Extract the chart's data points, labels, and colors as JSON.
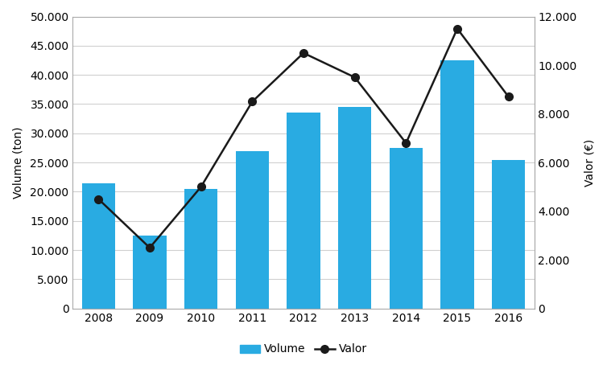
{
  "years": [
    2008,
    2009,
    2010,
    2011,
    2012,
    2013,
    2014,
    2015,
    2016
  ],
  "volume": [
    21500,
    12500,
    20500,
    27000,
    33500,
    34500,
    27500,
    42500,
    25500
  ],
  "valor": [
    4500,
    2500,
    5000,
    8500,
    10500,
    9500,
    6800,
    11500,
    8700
  ],
  "bar_color": "#29abe2",
  "line_color": "#1a1a1a",
  "marker_color": "#1a1a1a",
  "ylabel_left": "Volume (ton)",
  "ylabel_right": "Valor (€)",
  "ylim_left": [
    0,
    50000
  ],
  "ylim_right": [
    0,
    12000
  ],
  "yticks_left": [
    0,
    5000,
    10000,
    15000,
    20000,
    25000,
    30000,
    35000,
    40000,
    45000,
    50000
  ],
  "yticks_right": [
    0,
    2000,
    4000,
    6000,
    8000,
    10000,
    12000
  ],
  "legend_volume": "Volume",
  "legend_valor": "Valor",
  "background_color": "#ffffff",
  "grid_color": "#d0d0d0",
  "bar_width": 0.65,
  "figure_width": 7.54,
  "figure_height": 4.54,
  "dpi": 100,
  "tick_fontsize": 10,
  "label_fontsize": 10,
  "legend_fontsize": 10
}
